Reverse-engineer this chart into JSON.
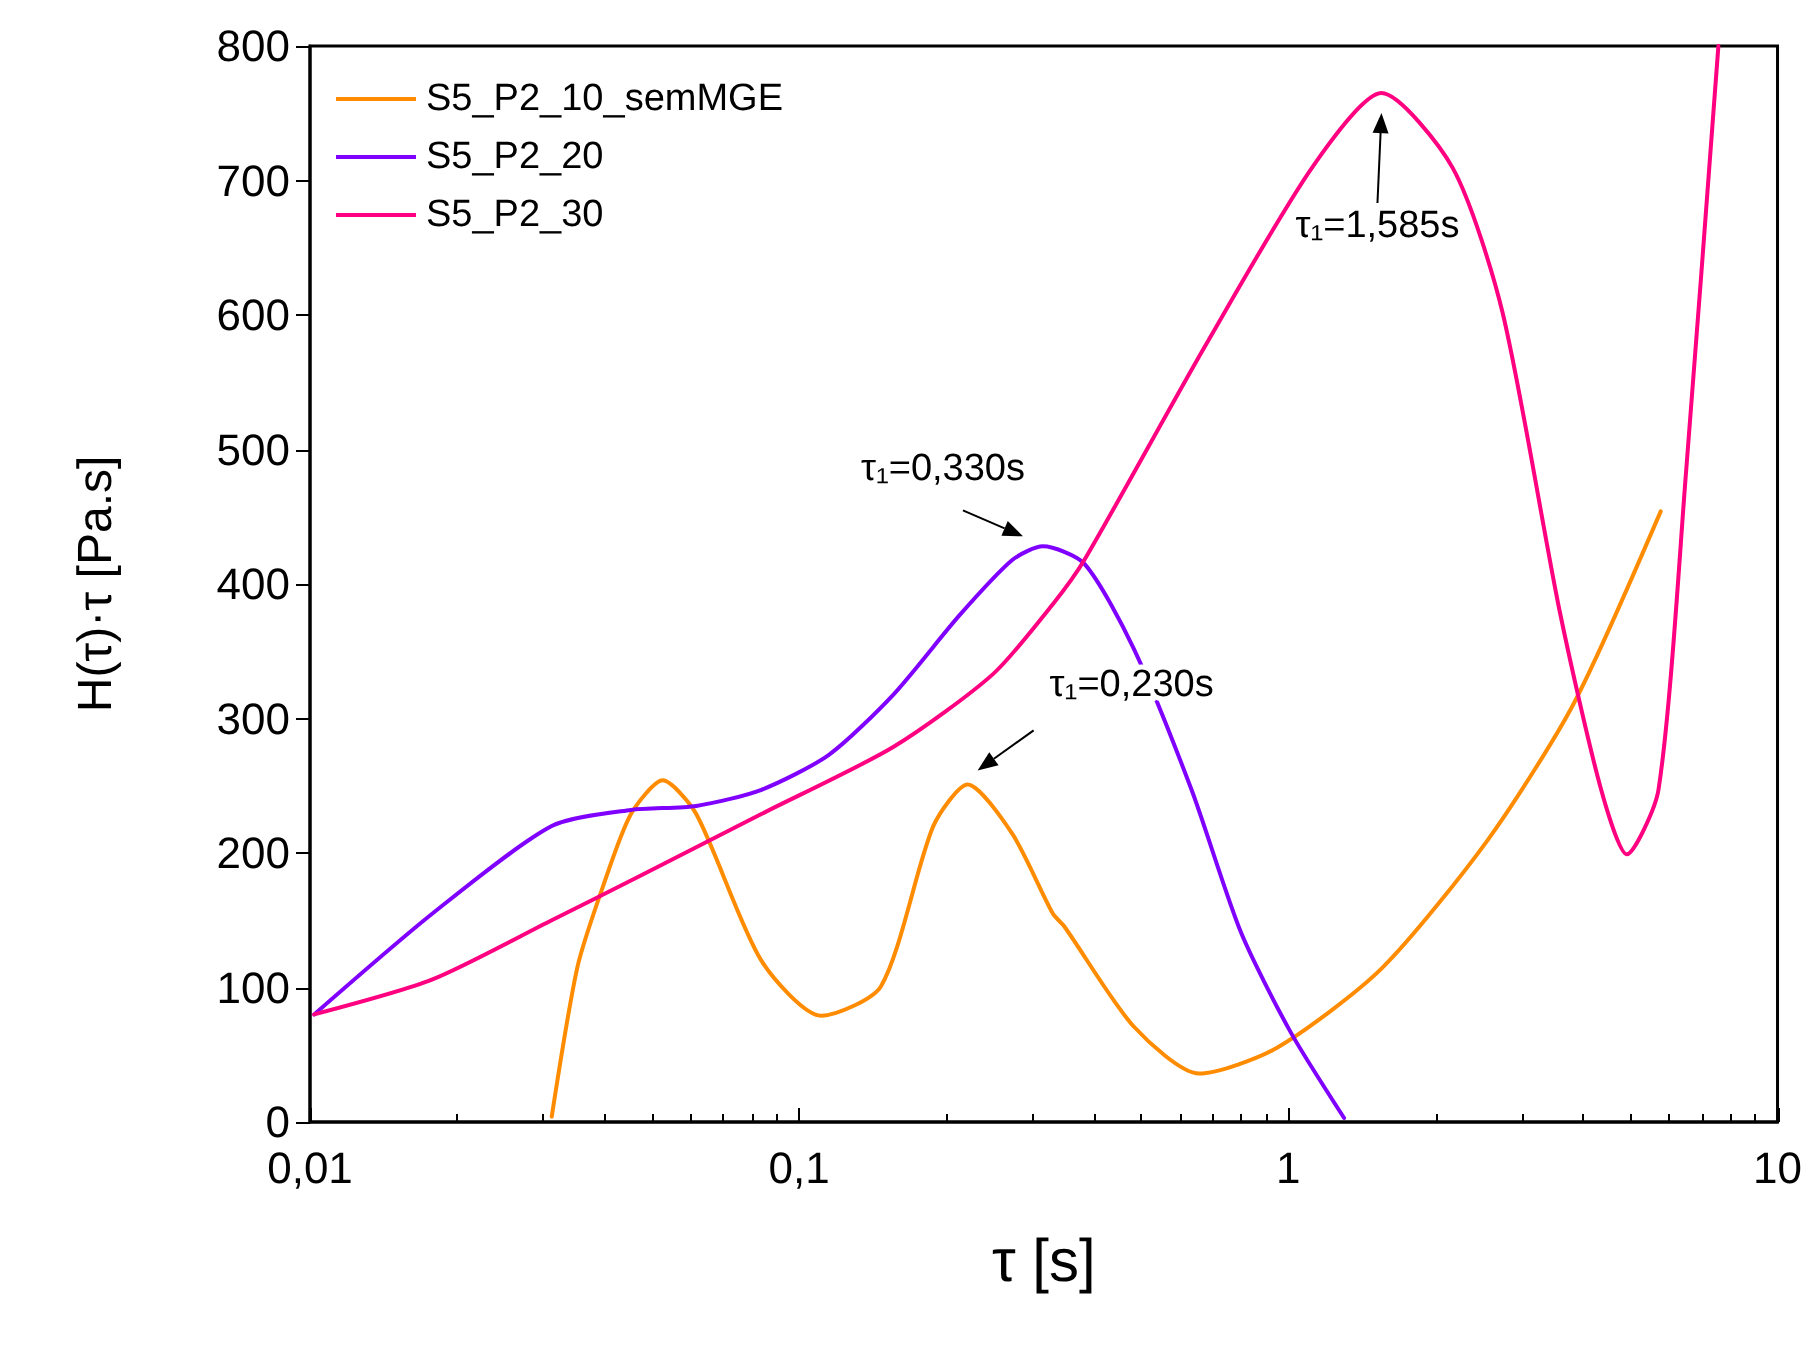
{
  "chart_data": {
    "type": "line",
    "xlabel": "τ [s]",
    "ylabel": "H(τ)·τ [Pa.s]",
    "log": "x",
    "grid": false,
    "legend": "top left",
    "line_style": "solid",
    "xlim": [
      0.01,
      10
    ],
    "xticks": [
      {
        "value": 0.01,
        "label": "0,01"
      },
      {
        "value": 0.1,
        "label": "0,1"
      },
      1,
      10
    ],
    "ylim": [
      0,
      800
    ],
    "yticks": [
      0,
      100,
      200,
      300,
      400,
      500,
      600,
      700,
      800
    ],
    "series": [
      {
        "name": "S5_P2_10_semMGE",
        "color": "#ff8c00",
        "x": [
          0.0312,
          0.0352,
          0.0397,
          0.0453,
          0.0526,
          0.0616,
          0.0837,
          0.111,
          0.147,
          0.188,
          0.221,
          0.273,
          0.33,
          0.349,
          0.483,
          0.657,
          0.946,
          1.55,
          2.56,
          3.83,
          5.77
        ],
        "values": [
          4,
          115,
          175,
          229,
          254,
          229,
          120,
          79,
          101,
          220,
          251,
          214,
          155,
          145,
          71,
          36,
          55,
          114,
          210,
          311,
          454
        ]
      },
      {
        "name": "S5_P2_20",
        "color": "#8000ff",
        "x": [
          0.0102,
          0.0178,
          0.0312,
          0.0453,
          0.0616,
          0.0837,
          0.115,
          0.156,
          0.213,
          0.273,
          0.315,
          0.383,
          0.483,
          0.634,
          0.8,
          1.01,
          1.3
        ],
        "values": [
          80,
          155,
          220,
          232,
          235,
          247,
          273,
          318,
          377,
          418,
          428,
          415,
          352,
          247,
          141,
          67,
          3
        ]
      },
      {
        "name": "S5_P2_30",
        "color": "#ff0080",
        "x": [
          0.0102,
          0.0178,
          0.0312,
          0.0479,
          0.0837,
          0.156,
          0.249,
          0.33,
          0.383,
          0.676,
          1.12,
          1.55,
          2.17,
          2.74,
          3.59,
          4.36,
          4.92,
          5.71,
          6.51,
          7.57
        ],
        "values": [
          80,
          106,
          150,
          184,
          229,
          279,
          333,
          385,
          418,
          577,
          710,
          765,
          709,
          602,
          379,
          247,
          199,
          247,
          486,
          800
        ]
      }
    ],
    "annotations": [
      {
        "text": "τ₁=0,330s",
        "x": 0.315,
        "y": 428
      },
      {
        "text": "τ₁=0,230s",
        "x": 0.221,
        "y": 251
      },
      {
        "text": "τ₁=1,585s",
        "x": 1.55,
        "y": 765
      }
    ]
  }
}
